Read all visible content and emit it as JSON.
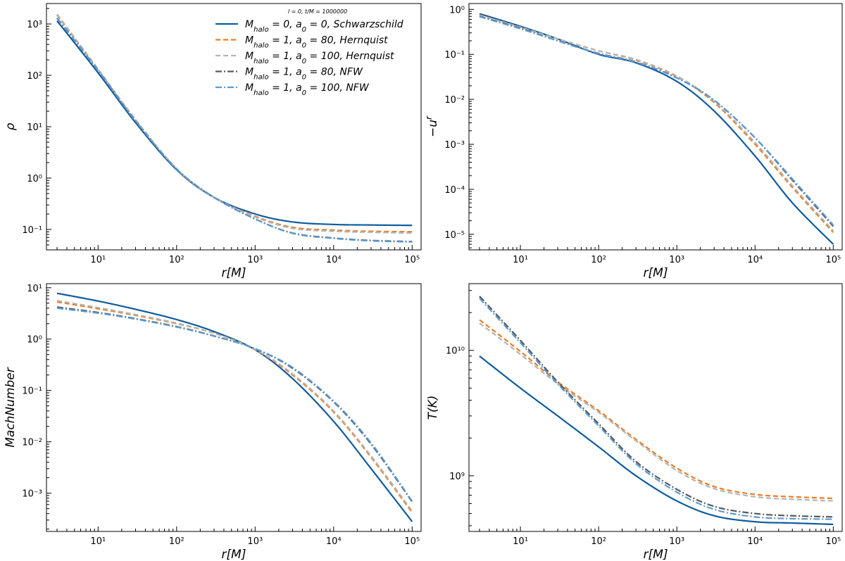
{
  "chart_data": [
    {
      "type": "line",
      "id": "rho",
      "xlabel": "r[M]",
      "ylabel": "ρ",
      "xscale": "log",
      "yscale": "log",
      "xlim": [
        2.2,
        130000
      ],
      "ylim": [
        0.04,
        2500
      ],
      "xticks": [
        {
          "v": 10,
          "label": "10¹"
        },
        {
          "v": 100,
          "label": "10²"
        },
        {
          "v": 1000,
          "label": "10³"
        },
        {
          "v": 10000,
          "label": "10⁴"
        },
        {
          "v": 100000,
          "label": "10⁵"
        }
      ],
      "yticks": [
        {
          "v": 0.1,
          "label": "10⁻¹"
        },
        {
          "v": 1,
          "label": "10⁰"
        },
        {
          "v": 10,
          "label": "10¹"
        },
        {
          "v": 100,
          "label": "10²"
        },
        {
          "v": 1000,
          "label": "10³"
        }
      ],
      "legend": {
        "location": "upper right",
        "title": "l = 0, t/M = 1000000",
        "entries": [
          "M_halo = 0, a_0 = 0, Schwarzschild",
          "M_halo = 1, a_0 = 80, Hernquist",
          "M_halo = 1, a_0 = 100, Hernquist",
          "M_halo = 1, a_0 = 80, NFW",
          "M_halo = 1, a_0 = 100, NFW"
        ]
      },
      "x": [
        3,
        10,
        30,
        100,
        300,
        1000,
        3000,
        10000,
        30000,
        100000
      ],
      "series": [
        {
          "name": "M_halo = 0, a_0 = 0, Schwarzschild",
          "values": [
            1150,
            112,
            12,
            1.45,
            0.42,
            0.2,
            0.14,
            0.125,
            0.122,
            0.12
          ]
        },
        {
          "name": "M_halo = 1, a_0 = 80, Hernquist",
          "values": [
            1500,
            130,
            13.5,
            1.5,
            0.42,
            0.18,
            0.11,
            0.097,
            0.092,
            0.09
          ]
        },
        {
          "name": "M_halo = 1, a_0 = 100, Hernquist",
          "values": [
            1550,
            132,
            13.8,
            1.52,
            0.42,
            0.175,
            0.105,
            0.092,
            0.088,
            0.085
          ]
        },
        {
          "name": "M_halo = 1, a_0 = 80, NFW",
          "values": [
            1300,
            125,
            13,
            1.5,
            0.42,
            0.16,
            0.085,
            0.068,
            0.061,
            0.058
          ]
        },
        {
          "name": "M_halo = 1, a_0 = 100, NFW",
          "values": [
            1280,
            124,
            13,
            1.5,
            0.42,
            0.16,
            0.084,
            0.067,
            0.06,
            0.057
          ]
        }
      ]
    },
    {
      "type": "line",
      "id": "ur",
      "xlabel": "r[M]",
      "ylabel": "−u^r",
      "xscale": "log",
      "yscale": "log",
      "xlim": [
        2.2,
        130000
      ],
      "ylim": [
        4.5e-06,
        1.35
      ],
      "xticks": [
        {
          "v": 10,
          "label": "10¹"
        },
        {
          "v": 100,
          "label": "10²"
        },
        {
          "v": 1000,
          "label": "10³"
        },
        {
          "v": 10000,
          "label": "10⁴"
        },
        {
          "v": 100000,
          "label": "10⁵"
        }
      ],
      "yticks": [
        {
          "v": 1e-05,
          "label": "10⁻⁵"
        },
        {
          "v": 0.0001,
          "label": "10⁻⁴"
        },
        {
          "v": 0.001,
          "label": "10⁻³"
        },
        {
          "v": 0.01,
          "label": "10⁻²"
        },
        {
          "v": 0.1,
          "label": "10⁻¹"
        },
        {
          "v": 1,
          "label": "10⁰"
        }
      ],
      "x": [
        3,
        10,
        30,
        100,
        300,
        1000,
        3000,
        10000,
        30000,
        100000
      ],
      "series": [
        {
          "name": "M_halo = 0, a_0 = 0, Schwarzschild",
          "values": [
            0.8,
            0.42,
            0.22,
            0.1,
            0.065,
            0.025,
            0.0055,
            0.00055,
            5e-05,
            6e-06
          ]
        },
        {
          "name": "M_halo = 1, a_0 = 80, Hernquist",
          "values": [
            0.75,
            0.4,
            0.22,
            0.12,
            0.075,
            0.032,
            0.0085,
            0.001,
            0.00011,
            1.1e-05
          ]
        },
        {
          "name": "M_halo = 1, a_0 = 100, Hernquist",
          "values": [
            0.74,
            0.4,
            0.22,
            0.12,
            0.077,
            0.033,
            0.009,
            0.0011,
            0.00012,
            1.2e-05
          ]
        },
        {
          "name": "M_halo = 1, a_0 = 80, NFW",
          "values": [
            0.7,
            0.38,
            0.2,
            0.105,
            0.068,
            0.03,
            0.0095,
            0.0014,
            0.00016,
            1.5e-05
          ]
        },
        {
          "name": "M_halo = 1, a_0 = 100, NFW",
          "values": [
            0.69,
            0.37,
            0.2,
            0.103,
            0.067,
            0.03,
            0.0096,
            0.0014,
            0.00017,
            1.6e-05
          ]
        }
      ]
    },
    {
      "type": "line",
      "id": "mach",
      "xlabel": "r[M]",
      "ylabel": "MachNumber",
      "xscale": "log",
      "yscale": "log",
      "xlim": [
        2.2,
        130000
      ],
      "ylim": [
        0.00018,
        12
      ],
      "xticks": [
        {
          "v": 10,
          "label": "10¹"
        },
        {
          "v": 100,
          "label": "10²"
        },
        {
          "v": 1000,
          "label": "10³"
        },
        {
          "v": 10000,
          "label": "10⁴"
        },
        {
          "v": 100000,
          "label": "10⁵"
        }
      ],
      "yticks": [
        {
          "v": 0.001,
          "label": "10⁻³"
        },
        {
          "v": 0.01,
          "label": "10⁻²"
        },
        {
          "v": 0.1,
          "label": "10⁻¹"
        },
        {
          "v": 1,
          "label": "10⁰"
        },
        {
          "v": 10,
          "label": "10¹"
        }
      ],
      "x": [
        3,
        10,
        30,
        100,
        300,
        1000,
        3000,
        10000,
        30000,
        100000
      ],
      "series": [
        {
          "name": "M_halo = 0, a_0 = 0, Schwarzschild",
          "values": [
            7.8,
            5.5,
            3.8,
            2.4,
            1.4,
            0.62,
            0.17,
            0.025,
            0.003,
            0.00028
          ]
        },
        {
          "name": "M_halo = 1, a_0 = 80, Hernquist",
          "values": [
            5.3,
            3.9,
            2.9,
            2.0,
            1.3,
            0.62,
            0.2,
            0.038,
            0.005,
            0.00042
          ]
        },
        {
          "name": "M_halo = 1, a_0 = 100, Hernquist",
          "values": [
            5.6,
            4.1,
            3.0,
            2.05,
            1.3,
            0.63,
            0.21,
            0.04,
            0.0053,
            0.00045
          ]
        },
        {
          "name": "M_halo = 1, a_0 = 80, NFW",
          "values": [
            4.2,
            3.3,
            2.5,
            1.75,
            1.15,
            0.65,
            0.27,
            0.06,
            0.009,
            0.00068
          ]
        },
        {
          "name": "M_halo = 1, a_0 = 100, NFW",
          "values": [
            4.0,
            3.2,
            2.45,
            1.72,
            1.14,
            0.65,
            0.28,
            0.062,
            0.0095,
            0.0007
          ]
        }
      ]
    },
    {
      "type": "line",
      "id": "temp",
      "xlabel": "r[M]",
      "ylabel": "T(K)",
      "xscale": "log",
      "yscale": "log",
      "xlim": [
        2.2,
        130000
      ],
      "ylim": [
        360000000,
        34000000000
      ],
      "xticks": [
        {
          "v": 10,
          "label": "10¹"
        },
        {
          "v": 100,
          "label": "10²"
        },
        {
          "v": 1000,
          "label": "10³"
        },
        {
          "v": 10000,
          "label": "10⁴"
        },
        {
          "v": 100000,
          "label": "10⁵"
        }
      ],
      "yticks": [
        {
          "v": 1000000000,
          "label": "10⁹"
        },
        {
          "v": 10000000000,
          "label": "10¹⁰"
        }
      ],
      "x": [
        3,
        10,
        30,
        100,
        300,
        1000,
        3000,
        10000,
        30000,
        100000
      ],
      "series": [
        {
          "name": "M_halo = 0, a_0 = 0, Schwarzschild",
          "values": [
            9000000000,
            5000000000,
            3000000000,
            1700000000,
            1000000000,
            630000000,
            480000000,
            430000000,
            420000000,
            410000000
          ]
        },
        {
          "name": "M_halo = 1, a_0 = 80, Hernquist",
          "values": [
            17500000000,
            9800000000,
            5600000000,
            3300000000,
            1950000000,
            1150000000,
            820000000,
            710000000,
            680000000,
            660000000
          ]
        },
        {
          "name": "M_halo = 1, a_0 = 100, Hernquist",
          "values": [
            16500000000,
            9300000000,
            5400000000,
            3200000000,
            1900000000,
            1100000000,
            790000000,
            680000000,
            650000000,
            630000000
          ]
        },
        {
          "name": "M_halo = 1, a_0 = 80, NFW",
          "values": [
            27000000000,
            12000000000,
            5600000000,
            2600000000,
            1300000000,
            780000000,
            570000000,
            500000000,
            480000000,
            470000000
          ]
        },
        {
          "name": "M_halo = 1, a_0 = 100, NFW",
          "values": [
            26000000000,
            11500000000,
            5400000000,
            2500000000,
            1250000000,
            740000000,
            540000000,
            470000000,
            455000000,
            450000000
          ]
        }
      ]
    }
  ],
  "colors": {
    "schwarzschild": "#0f5c9c",
    "hernquist_80": "#ec7c24",
    "hernquist_100": "#b5b5b5",
    "nfw_80": "#595959",
    "nfw_100": "#5b9bd5",
    "axes": "#000000"
  }
}
